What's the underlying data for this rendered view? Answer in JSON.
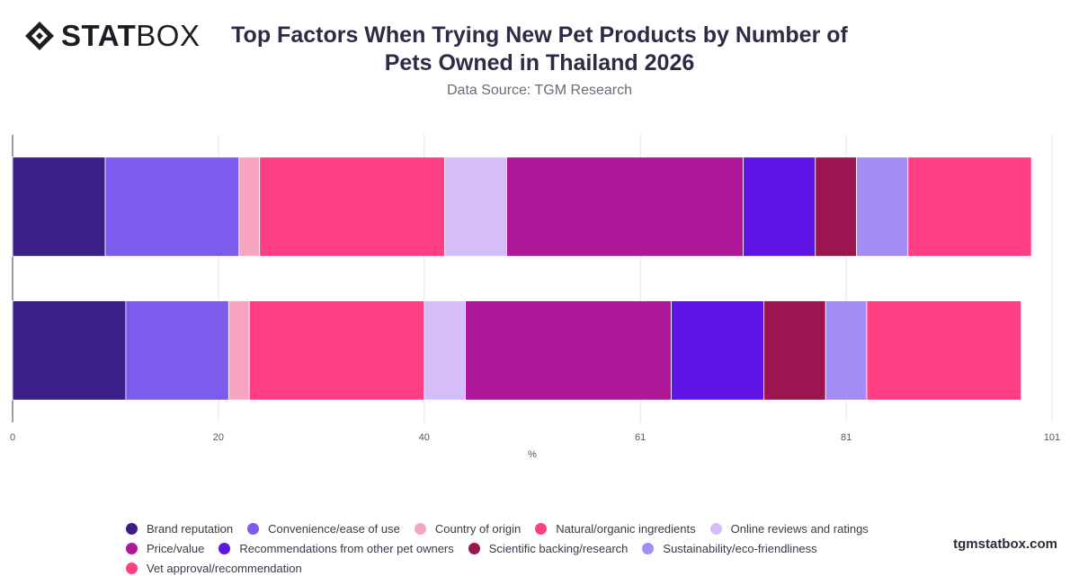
{
  "brand": {
    "logo_icon": "statbox-diamond-icon",
    "logo_bold": "STAT",
    "logo_light": "BOX",
    "footer": "tgmstatbox.com"
  },
  "chart_data": {
    "type": "bar",
    "orientation": "horizontal",
    "stacked": true,
    "title": "Top Factors When Trying New Pet Products by Number of Pets Owned in Thailand 2026",
    "subtitle": "Data Source: TGM Research",
    "xlabel": "%",
    "ylabel": "",
    "xlim": [
      0,
      101
    ],
    "x_ticks": [
      "0",
      "20",
      "40",
      "61",
      "81",
      "101"
    ],
    "grid": true,
    "legend_position": "bottom",
    "categories": [
      "",
      ""
    ],
    "series": [
      {
        "name": "Brand reputation",
        "color": "#3b1f86",
        "values": [
          9,
          11
        ]
      },
      {
        "name": "Convenience/ease of use",
        "color": "#7b5cec",
        "values": [
          13,
          10
        ]
      },
      {
        "name": "Country of origin",
        "color": "#f7a5c2",
        "values": [
          2,
          2
        ]
      },
      {
        "name": "Natural/organic ingredients",
        "color": "#ff3f84",
        "values": [
          18,
          17
        ]
      },
      {
        "name": "Online reviews and ratings",
        "color": "#d4bdf8",
        "values": [
          6,
          4
        ]
      },
      {
        "name": "Price/value",
        "color": "#b0189a",
        "values": [
          23,
          20
        ]
      },
      {
        "name": "Recommendations from other pet owners",
        "color": "#5e14e4",
        "values": [
          7,
          9
        ]
      },
      {
        "name": "Scientific backing/research",
        "color": "#9c1550",
        "values": [
          4,
          6
        ]
      },
      {
        "name": "Sustainability/eco-friendliness",
        "color": "#a48cf5",
        "values": [
          5,
          4
        ]
      },
      {
        "name": "Vet approval/recommendation",
        "color": "#ff3f84",
        "values": [
          12,
          15
        ]
      }
    ]
  }
}
